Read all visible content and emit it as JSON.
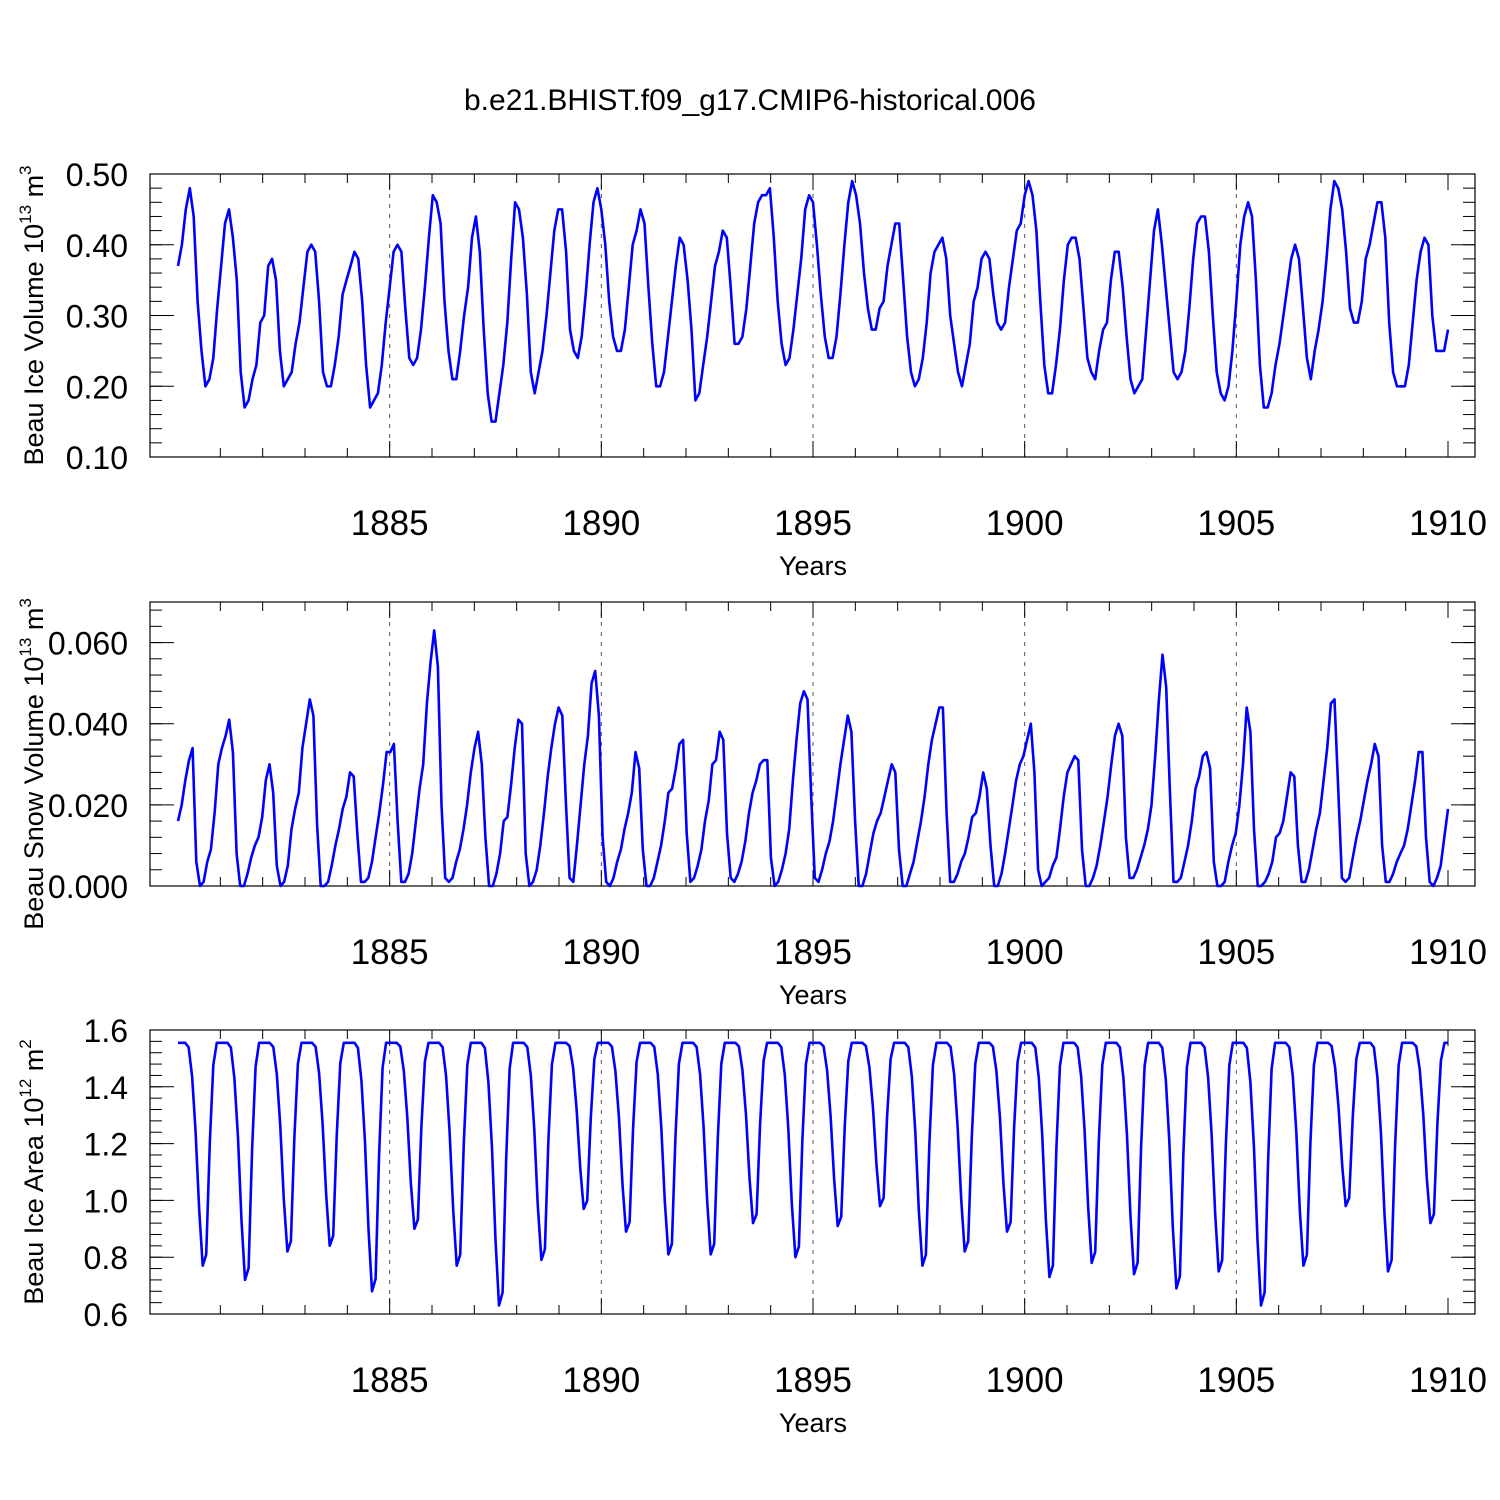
{
  "title": "b.e21.BHIST.f09_g17.CMIP6-historical.006",
  "colors": {
    "series": "#0000ff",
    "axes": "#000000",
    "grid": "#555555"
  },
  "chart_data": [
    {
      "type": "line",
      "ylabel_main": "Beau Ice Volume 10",
      "ylabel_exp": "13",
      "ylabel_unit": " m",
      "ylabel_unit_exp": "3",
      "xlabel": "Years",
      "xlim": [
        1880.0,
        1910.0
      ],
      "ylim": [
        0.1,
        0.5
      ],
      "ytick_values": [
        0.1,
        0.2,
        0.3,
        0.4,
        0.5
      ],
      "ytick_labels": [
        "0.10",
        "0.20",
        "0.30",
        "0.40",
        "0.50"
      ],
      "xtick_values": [
        1885,
        1890,
        1895,
        1900,
        1905,
        1910
      ],
      "xtick_labels": [
        "1885",
        "1890",
        "1895",
        "1900",
        "1905",
        "1910"
      ],
      "dashed_gridlines_at": [
        1885,
        1890,
        1895,
        1900,
        1905
      ],
      "series": [
        {
          "values": [
            0.37,
            0.4,
            0.45,
            0.48,
            0.44,
            0.32,
            0.25,
            0.2,
            0.21,
            0.24,
            0.31,
            0.37,
            0.43,
            0.45,
            0.41,
            0.35,
            0.22,
            0.17,
            0.18,
            0.21,
            0.23,
            0.29,
            0.3,
            0.37,
            0.38,
            0.35,
            0.25,
            0.2,
            0.21,
            0.22,
            0.26,
            0.29,
            0.34,
            0.39,
            0.4,
            0.39,
            0.32,
            0.22,
            0.2,
            0.2,
            0.23,
            0.27,
            0.33,
            0.35,
            0.37,
            0.39,
            0.38,
            0.32,
            0.23,
            0.17,
            0.18,
            0.19,
            0.23,
            0.29,
            0.34,
            0.39,
            0.4,
            0.39,
            0.31,
            0.24,
            0.23,
            0.24,
            0.28,
            0.34,
            0.41,
            0.47,
            0.46,
            0.43,
            0.32,
            0.25,
            0.21,
            0.21,
            0.25,
            0.3,
            0.34,
            0.41,
            0.44,
            0.39,
            0.28,
            0.19,
            0.15,
            0.15,
            0.19,
            0.23,
            0.29,
            0.38,
            0.46,
            0.45,
            0.41,
            0.33,
            0.22,
            0.19,
            0.22,
            0.25,
            0.3,
            0.36,
            0.42,
            0.45,
            0.45,
            0.39,
            0.28,
            0.25,
            0.24,
            0.27,
            0.33,
            0.4,
            0.46,
            0.48,
            0.45,
            0.4,
            0.32,
            0.27,
            0.25,
            0.25,
            0.28,
            0.34,
            0.4,
            0.42,
            0.45,
            0.43,
            0.34,
            0.26,
            0.2,
            0.2,
            0.22,
            0.27,
            0.32,
            0.37,
            0.41,
            0.4,
            0.35,
            0.28,
            0.18,
            0.19,
            0.23,
            0.27,
            0.32,
            0.37,
            0.39,
            0.42,
            0.41,
            0.34,
            0.26,
            0.26,
            0.27,
            0.31,
            0.37,
            0.43,
            0.46,
            0.47,
            0.47,
            0.48,
            0.41,
            0.32,
            0.26,
            0.23,
            0.24,
            0.28,
            0.33,
            0.38,
            0.45,
            0.47,
            0.46,
            0.4,
            0.33,
            0.27,
            0.24,
            0.24,
            0.27,
            0.33,
            0.4,
            0.46,
            0.49,
            0.47,
            0.43,
            0.36,
            0.31,
            0.28,
            0.28,
            0.31,
            0.32,
            0.37,
            0.4,
            0.43,
            0.43,
            0.35,
            0.27,
            0.22,
            0.2,
            0.21,
            0.24,
            0.29,
            0.36,
            0.39,
            0.4,
            0.41,
            0.38,
            0.3,
            0.26,
            0.22,
            0.2,
            0.23,
            0.26,
            0.32,
            0.34,
            0.38,
            0.39,
            0.38,
            0.33,
            0.29,
            0.28,
            0.29,
            0.34,
            0.38,
            0.42,
            0.43,
            0.47,
            0.49,
            0.47,
            0.42,
            0.32,
            0.23,
            0.19,
            0.19,
            0.23,
            0.28,
            0.35,
            0.4,
            0.41,
            0.41,
            0.38,
            0.31,
            0.24,
            0.22,
            0.21,
            0.25,
            0.28,
            0.29,
            0.35,
            0.39,
            0.39,
            0.34,
            0.27,
            0.21,
            0.19,
            0.2,
            0.21,
            0.28,
            0.35,
            0.42,
            0.45,
            0.4,
            0.34,
            0.28,
            0.22,
            0.21,
            0.22,
            0.25,
            0.31,
            0.38,
            0.43,
            0.44,
            0.44,
            0.39,
            0.3,
            0.22,
            0.19,
            0.18,
            0.2,
            0.25,
            0.32,
            0.4,
            0.44,
            0.46,
            0.44,
            0.35,
            0.23,
            0.17,
            0.17,
            0.19,
            0.23,
            0.26,
            0.3,
            0.34,
            0.38,
            0.4,
            0.38,
            0.31,
            0.24,
            0.21,
            0.25,
            0.28,
            0.32,
            0.38,
            0.45,
            0.49,
            0.48,
            0.45,
            0.39,
            0.31,
            0.29,
            0.29,
            0.32,
            0.38,
            0.4,
            0.43,
            0.46,
            0.46,
            0.41,
            0.29,
            0.22,
            0.2,
            0.2,
            0.2,
            0.23,
            0.29,
            0.35,
            0.39,
            0.41,
            0.4,
            0.3,
            0.25,
            0.25,
            0.25,
            0.28
          ]
        }
      ]
    },
    {
      "type": "line",
      "ylabel_main": "Beau Snow Volume 10",
      "ylabel_exp": "13",
      "ylabel_unit": " m",
      "ylabel_unit_exp": "3",
      "xlabel": "Years",
      "xlim": [
        1880.0,
        1910.0
      ],
      "ylim": [
        0.0,
        0.07
      ],
      "ytick_values": [
        0.0,
        0.02,
        0.04,
        0.06
      ],
      "ytick_labels": [
        "0.000",
        "0.020",
        "0.040",
        "0.060"
      ],
      "xtick_values": [
        1885,
        1890,
        1895,
        1900,
        1905,
        1910
      ],
      "xtick_labels": [
        "1885",
        "1890",
        "1895",
        "1900",
        "1905",
        "1910"
      ],
      "dashed_gridlines_at": [
        1885,
        1890,
        1895,
        1900,
        1905
      ],
      "series": [
        {
          "values": [
            0.016,
            0.02,
            0.026,
            0.031,
            0.034,
            0.006,
            0.0,
            0.001,
            0.006,
            0.009,
            0.018,
            0.03,
            0.034,
            0.037,
            0.041,
            0.033,
            0.008,
            0.0,
            0.0,
            0.003,
            0.007,
            0.01,
            0.012,
            0.017,
            0.026,
            0.03,
            0.023,
            0.005,
            0.0,
            0.001,
            0.005,
            0.014,
            0.019,
            0.023,
            0.034,
            0.04,
            0.046,
            0.042,
            0.015,
            0.0,
            0.0,
            0.001,
            0.005,
            0.01,
            0.014,
            0.019,
            0.022,
            0.028,
            0.027,
            0.013,
            0.001,
            0.001,
            0.002,
            0.006,
            0.012,
            0.018,
            0.025,
            0.033,
            0.033,
            0.035,
            0.016,
            0.001,
            0.001,
            0.003,
            0.008,
            0.016,
            0.024,
            0.03,
            0.045,
            0.055,
            0.063,
            0.054,
            0.02,
            0.002,
            0.001,
            0.002,
            0.006,
            0.009,
            0.014,
            0.02,
            0.028,
            0.034,
            0.038,
            0.03,
            0.012,
            0.0,
            0.0,
            0.003,
            0.008,
            0.016,
            0.017,
            0.025,
            0.034,
            0.041,
            0.04,
            0.008,
            0.0,
            0.001,
            0.004,
            0.01,
            0.018,
            0.027,
            0.034,
            0.04,
            0.044,
            0.042,
            0.02,
            0.002,
            0.001,
            0.01,
            0.02,
            0.03,
            0.037,
            0.05,
            0.053,
            0.042,
            0.012,
            0.001,
            0.0,
            0.002,
            0.006,
            0.009,
            0.014,
            0.018,
            0.023,
            0.033,
            0.029,
            0.009,
            0.0,
            0.0,
            0.002,
            0.006,
            0.01,
            0.016,
            0.023,
            0.024,
            0.029,
            0.035,
            0.036,
            0.013,
            0.001,
            0.002,
            0.005,
            0.009,
            0.016,
            0.021,
            0.03,
            0.031,
            0.038,
            0.036,
            0.013,
            0.002,
            0.001,
            0.003,
            0.006,
            0.011,
            0.018,
            0.023,
            0.026,
            0.03,
            0.031,
            0.031,
            0.007,
            0.0,
            0.001,
            0.004,
            0.008,
            0.014,
            0.026,
            0.036,
            0.045,
            0.048,
            0.046,
            0.022,
            0.002,
            0.001,
            0.004,
            0.008,
            0.011,
            0.016,
            0.023,
            0.03,
            0.036,
            0.042,
            0.038,
            0.016,
            0.0,
            0.0,
            0.003,
            0.008,
            0.013,
            0.016,
            0.018,
            0.022,
            0.026,
            0.03,
            0.028,
            0.009,
            0.0,
            0.0,
            0.003,
            0.006,
            0.011,
            0.016,
            0.022,
            0.03,
            0.036,
            0.04,
            0.044,
            0.044,
            0.018,
            0.001,
            0.001,
            0.003,
            0.006,
            0.008,
            0.012,
            0.017,
            0.018,
            0.022,
            0.028,
            0.024,
            0.01,
            0.0,
            0.0,
            0.003,
            0.008,
            0.014,
            0.02,
            0.026,
            0.03,
            0.032,
            0.036,
            0.04,
            0.028,
            0.004,
            0.0,
            0.001,
            0.002,
            0.005,
            0.007,
            0.014,
            0.022,
            0.028,
            0.03,
            0.032,
            0.031,
            0.009,
            0.0,
            0.0,
            0.002,
            0.005,
            0.01,
            0.016,
            0.022,
            0.03,
            0.037,
            0.04,
            0.037,
            0.012,
            0.002,
            0.002,
            0.004,
            0.007,
            0.01,
            0.014,
            0.02,
            0.032,
            0.046,
            0.057,
            0.049,
            0.024,
            0.001,
            0.001,
            0.002,
            0.006,
            0.01,
            0.016,
            0.024,
            0.027,
            0.032,
            0.033,
            0.029,
            0.006,
            0.0,
            0.0,
            0.001,
            0.006,
            0.01,
            0.013,
            0.02,
            0.03,
            0.044,
            0.038,
            0.014,
            0.0,
            0.0,
            0.001,
            0.003,
            0.006,
            0.012,
            0.013,
            0.016,
            0.022,
            0.028,
            0.027,
            0.01,
            0.001,
            0.001,
            0.004,
            0.009,
            0.014,
            0.018,
            0.026,
            0.034,
            0.045,
            0.046,
            0.024,
            0.002,
            0.001,
            0.002,
            0.007,
            0.012,
            0.016,
            0.021,
            0.026,
            0.03,
            0.035,
            0.032,
            0.01,
            0.001,
            0.001,
            0.003,
            0.006,
            0.008,
            0.01,
            0.014,
            0.02,
            0.026,
            0.033,
            0.033,
            0.012,
            0.001,
            0.0,
            0.002,
            0.005,
            0.012,
            0.019
          ]
        }
      ]
    },
    {
      "type": "line",
      "ylabel_main": "Beau Ice Area 10",
      "ylabel_exp": "12",
      "ylabel_unit": " m",
      "ylabel_unit_exp": "2",
      "xlabel": "Years",
      "xlim": [
        1880.0,
        1910.0
      ],
      "ylim": [
        0.6,
        1.6
      ],
      "ytick_values": [
        0.6,
        0.8,
        1.0,
        1.2,
        1.4,
        1.6
      ],
      "ytick_labels": [
        "0.6",
        "0.8",
        "1.0",
        "1.2",
        "1.4",
        "1.6"
      ],
      "xtick_values": [
        1885,
        1890,
        1895,
        1900,
        1905,
        1910
      ],
      "xtick_labels": [
        "1885",
        "1890",
        "1895",
        "1900",
        "1905",
        "1910"
      ],
      "dashed_gridlines_at": [
        1885,
        1890,
        1895,
        1900,
        1905
      ],
      "series": [
        {
          "annual_cycle_months": [
            1,
            2,
            3,
            4,
            5,
            6,
            7,
            8,
            9,
            10,
            11,
            12
          ],
          "annual_max": 1.555,
          "yearly_minima": [
            0.77,
            0.72,
            0.82,
            0.84,
            0.68,
            0.9,
            0.77,
            0.63,
            0.79,
            0.97,
            0.89,
            0.81,
            0.81,
            0.92,
            0.8,
            0.91,
            0.98,
            0.77,
            0.82,
            0.89,
            0.73,
            0.78,
            0.74,
            0.69,
            0.75,
            0.63,
            0.77,
            0.98,
            0.75,
            0.92
          ],
          "yearly_profile_fraction": [
            1.0,
            1.0,
            1.0,
            0.98,
            0.85,
            0.6,
            0.25,
            0.0,
            0.05,
            0.55,
            0.9,
            1.0
          ]
        }
      ]
    }
  ]
}
